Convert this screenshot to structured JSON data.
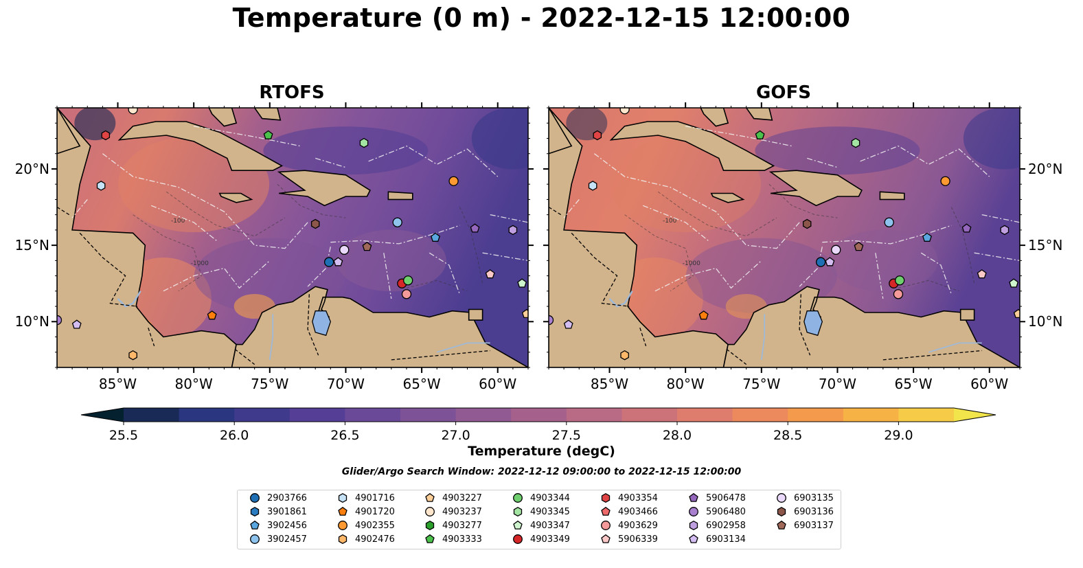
{
  "title": "Temperature (0 m) - 2022-12-15 12:00:00",
  "panels": [
    {
      "title": "RTOFS"
    },
    {
      "title": "GOFS"
    }
  ],
  "map_extent": {
    "lon_min": -89,
    "lon_max": -58,
    "lat_min": 7,
    "lat_max": 24
  },
  "lon_ticks": [
    {
      "value": -85,
      "label": "85°W"
    },
    {
      "value": -80,
      "label": "80°W"
    },
    {
      "value": -75,
      "label": "75°W"
    },
    {
      "value": -70,
      "label": "70°W"
    },
    {
      "value": -65,
      "label": "65°W"
    },
    {
      "value": -60,
      "label": "60°W"
    }
  ],
  "lat_ticks": [
    {
      "value": 20,
      "label": "20°N"
    },
    {
      "value": 15,
      "label": "15°N"
    },
    {
      "value": 10,
      "label": "10°N"
    }
  ],
  "isobath_labels": [
    "-1000",
    "-100"
  ],
  "colorbar": {
    "label": "Temperature (degC)",
    "ticks": [
      "25.5",
      "26.0",
      "26.5",
      "27.0",
      "27.5",
      "28.0",
      "28.5",
      "29.0"
    ],
    "tick_values": [
      25.5,
      26.0,
      26.5,
      27.0,
      27.5,
      28.0,
      28.5,
      29.0
    ],
    "vmin": 25.25,
    "vmax": 29.25,
    "extend": "both",
    "colors": [
      "#03212e",
      "#182a55",
      "#2a3780",
      "#3f3a8c",
      "#553f96",
      "#6a4a98",
      "#7d5296",
      "#915a92",
      "#a5618c",
      "#b96a84",
      "#cc737a",
      "#de7d6d",
      "#ec8a5e",
      "#f49a4d",
      "#f7b245",
      "#f6cb47",
      "#f2e54c"
    ]
  },
  "land_color": "#d2b48c",
  "search_window": "Glider/Argo Search Window: 2022-12-12 09:00:00 to 2022-12-15 12:00:00",
  "legend": [
    {
      "id": "2903766",
      "marker": "circle",
      "color": "#1f6fb4"
    },
    {
      "id": "3901861",
      "marker": "hexagon",
      "color": "#2a7bc0"
    },
    {
      "id": "3902456",
      "marker": "pentagon",
      "color": "#5aa7e0"
    },
    {
      "id": "3902457",
      "marker": "circle",
      "color": "#8ec3ee"
    },
    {
      "id": "4901716",
      "marker": "hexagon",
      "color": "#c6e2f7"
    },
    {
      "id": "4901720",
      "marker": "pentagon",
      "color": "#ff7f0e"
    },
    {
      "id": "4902355",
      "marker": "circle",
      "color": "#ff9a33"
    },
    {
      "id": "4902476",
      "marker": "hexagon",
      "color": "#ffb86a"
    },
    {
      "id": "4903227",
      "marker": "pentagon",
      "color": "#ffcf99"
    },
    {
      "id": "4903237",
      "marker": "circle",
      "color": "#ffe6cc"
    },
    {
      "id": "4903277",
      "marker": "hexagon",
      "color": "#2ca02c"
    },
    {
      "id": "4903333",
      "marker": "pentagon",
      "color": "#4cc14c"
    },
    {
      "id": "4903344",
      "marker": "circle",
      "color": "#6fcf6f"
    },
    {
      "id": "4903345",
      "marker": "hexagon",
      "color": "#a3e4a3"
    },
    {
      "id": "4903347",
      "marker": "pentagon",
      "color": "#cef5ce"
    },
    {
      "id": "4903349",
      "marker": "circle",
      "color": "#d62728"
    },
    {
      "id": "4903354",
      "marker": "hexagon",
      "color": "#e04444"
    },
    {
      "id": "4903466",
      "marker": "pentagon",
      "color": "#ee6a6a"
    },
    {
      "id": "4903629",
      "marker": "circle",
      "color": "#f49a9a"
    },
    {
      "id": "5906339",
      "marker": "pentagon",
      "color": "#fbc8c8"
    },
    {
      "id": "5906478",
      "marker": "pentagon",
      "color": "#9467bd"
    },
    {
      "id": "5906480",
      "marker": "circle",
      "color": "#a880cf"
    },
    {
      "id": "6902958",
      "marker": "hexagon",
      "color": "#bf9fe0"
    },
    {
      "id": "6903134",
      "marker": "pentagon",
      "color": "#d4bdf0"
    },
    {
      "id": "6903135",
      "marker": "circle",
      "color": "#ead9fb"
    },
    {
      "id": "6903136",
      "marker": "hexagon",
      "color": "#8c564b"
    },
    {
      "id": "6903137",
      "marker": "pentagon",
      "color": "#a0695a"
    }
  ],
  "floats": [
    {
      "id": "4903237",
      "lon": -84.0,
      "lat": 23.9
    },
    {
      "id": "4903354",
      "lon": -85.8,
      "lat": 22.2
    },
    {
      "id": "4903333",
      "lon": -75.1,
      "lat": 22.2
    },
    {
      "id": "4903345",
      "lon": -68.8,
      "lat": 21.7
    },
    {
      "id": "4901716",
      "lon": -86.1,
      "lat": 18.9
    },
    {
      "id": "4902355",
      "lon": -62.9,
      "lat": 19.2
    },
    {
      "id": "6903136",
      "lon": -72.0,
      "lat": 16.4
    },
    {
      "id": "3902457",
      "lon": -66.6,
      "lat": 16.5
    },
    {
      "id": "3902456",
      "lon": -64.1,
      "lat": 15.5
    },
    {
      "id": "5906478",
      "lon": -61.5,
      "lat": 16.1
    },
    {
      "id": "6902958",
      "lon": -59.0,
      "lat": 16.0
    },
    {
      "id": "6903137",
      "lon": -68.6,
      "lat": 14.9
    },
    {
      "id": "6903135",
      "lon": -70.1,
      "lat": 14.7
    },
    {
      "id": "2903766",
      "lon": -71.1,
      "lat": 13.9
    },
    {
      "id": "6903134",
      "lon": -70.5,
      "lat": 13.9
    },
    {
      "id": "5906339",
      "lon": -60.5,
      "lat": 13.1
    },
    {
      "id": "4903347",
      "lon": -58.4,
      "lat": 12.5
    },
    {
      "id": "4903349",
      "lon": -66.3,
      "lat": 12.5
    },
    {
      "id": "4903344",
      "lon": -65.9,
      "lat": 12.7
    },
    {
      "id": "4903629",
      "lon": -66.0,
      "lat": 11.8
    },
    {
      "id": "4901720",
      "lon": -78.8,
      "lat": 10.4
    },
    {
      "id": "6903134",
      "lon": -87.7,
      "lat": 9.8
    },
    {
      "id": "5906480",
      "lon": -89.0,
      "lat": 10.1
    },
    {
      "id": "4902476",
      "lon": -84.0,
      "lat": 7.8
    },
    {
      "id": "4903227",
      "lon": -58.1,
      "lat": 10.5
    }
  ]
}
